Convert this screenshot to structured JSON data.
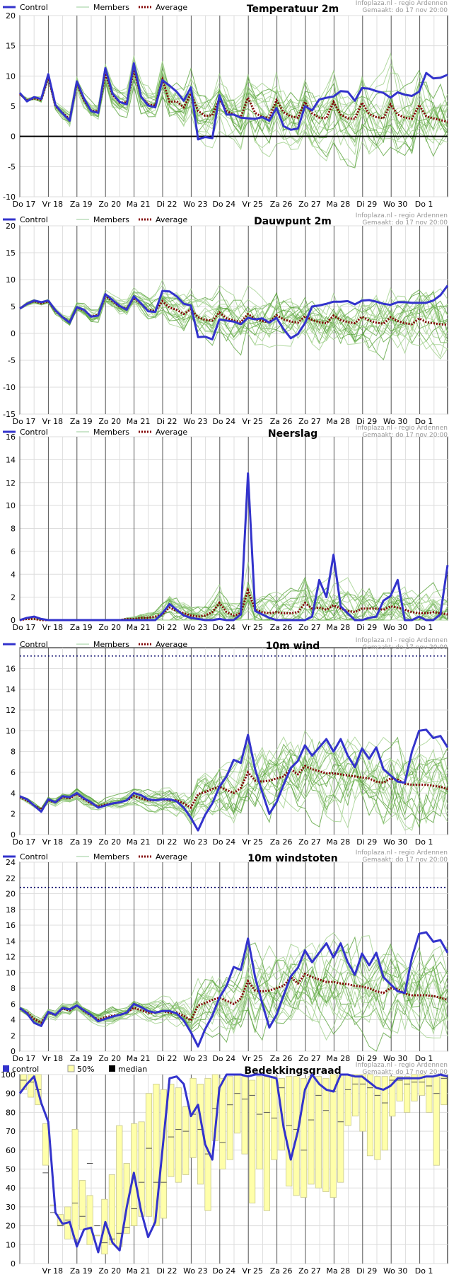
{
  "days": [
    "Do 17",
    "Vr 18",
    "Za 19",
    "Zo 20",
    "Ma 21",
    "Di 22",
    "Wo 23",
    "Do 24",
    "Vr 25",
    "Za 26",
    "Zo 27",
    "Ma 28",
    "Di 29",
    "Wo 30",
    "Do 1"
  ],
  "colors": {
    "control": "#3333cc",
    "members": "#55aa33",
    "average": "#800000",
    "bar": "#ffffaa",
    "bar_stroke": "#c8c890",
    "grid": "#dddddd",
    "daygrid": "#555555"
  },
  "chart_data": [
    {
      "id": "temp",
      "type": "line",
      "title": "Temperatuur 2m",
      "legend": [
        "Control",
        "Members",
        "Average"
      ],
      "credit": "Infoplaza.nl - regio Ardennen",
      "made": "Gemaakt: do 17 nov 20:00",
      "ylim": [
        -10,
        20
      ],
      "yticks": [
        -10,
        -5,
        0,
        5,
        10,
        15,
        20
      ],
      "control": [
        7.2,
        5.8,
        6.5,
        6.2,
        10.3,
        5.2,
        3.8,
        2.6,
        9.1,
        6.3,
        4.2,
        3.9,
        11.3,
        7.1,
        5.7,
        5.3,
        12.1,
        6.6,
        5.1,
        4.8,
        9.3,
        8.4,
        7.4,
        5.9,
        8.1,
        -0.5,
        -0.1,
        -0.3,
        6.8,
        3.6,
        3.6,
        3.1,
        3.0,
        2.9,
        3.2,
        2.6,
        4.7,
        1.7,
        1.1,
        1.3,
        5.0,
        4.3,
        6.1,
        6.4,
        6.6,
        7.5,
        7.4,
        5.9,
        8.0,
        7.9,
        7.5,
        7.2,
        6.4,
        7.3,
        6.9,
        6.7,
        7.4,
        10.5,
        9.6,
        9.7,
        10.2
      ],
      "average": [
        7.0,
        6.0,
        6.3,
        6.0,
        9.8,
        5.0,
        3.9,
        2.8,
        8.8,
        6.0,
        4.3,
        4.1,
        10.4,
        6.9,
        5.6,
        5.6,
        11.0,
        6.6,
        5.3,
        5.1,
        9.4,
        5.7,
        5.8,
        4.8,
        7.1,
        4.2,
        3.4,
        3.5,
        6.2,
        4.2,
        3.6,
        3.2,
        6.4,
        3.9,
        3.2,
        3.1,
        6.0,
        4.0,
        3.3,
        3.1,
        5.7,
        3.8,
        3.1,
        3.0,
        5.7,
        3.6,
        3.0,
        2.9,
        5.6,
        3.7,
        3.2,
        3.0,
        5.3,
        3.6,
        3.1,
        2.9,
        5.2,
        3.3,
        3.0,
        2.7,
        2.4
      ],
      "spread": [
        0.2,
        0.3,
        0.3,
        0.4,
        0.5,
        0.6,
        0.7,
        0.8,
        0.8,
        0.9,
        1.0,
        1.1,
        1.1,
        1.2,
        1.3,
        1.4,
        1.5,
        1.7,
        1.9,
        2.1,
        2.3,
        2.4,
        2.5,
        2.6,
        2.7,
        2.8,
        2.9,
        3.0,
        3.1,
        3.2,
        3.3,
        3.4,
        3.5,
        3.6,
        3.6,
        3.7,
        3.7,
        3.8,
        3.8,
        3.9,
        3.9,
        4.0,
        4.0,
        4.1,
        4.1,
        4.2,
        4.2,
        4.3,
        4.3,
        4.4,
        4.4,
        4.4,
        4.5,
        4.5,
        4.5,
        4.6,
        4.6,
        4.6,
        4.6,
        4.7,
        4.7
      ],
      "baseline": 0
    },
    {
      "id": "dew",
      "type": "line",
      "title": "Dauwpunt 2m",
      "legend": [
        "Control",
        "Members",
        "Average"
      ],
      "credit": "Infoplaza.nl - regio Ardennen",
      "made": "Gemaakt: do 17 nov 20:00",
      "ylim": [
        -15,
        20
      ],
      "yticks": [
        -15,
        -10,
        -5,
        0,
        5,
        10,
        15,
        20
      ],
      "control": [
        4.6,
        5.5,
        6.1,
        5.8,
        6.1,
        4.3,
        3.0,
        2.0,
        4.9,
        4.4,
        3.1,
        3.3,
        7.3,
        6.2,
        5.1,
        4.4,
        6.9,
        5.6,
        4.1,
        4.0,
        7.9,
        7.8,
        6.9,
        5.5,
        5.2,
        -0.7,
        -0.6,
        -1.1,
        2.6,
        2.4,
        2.2,
        1.7,
        2.9,
        2.6,
        2.8,
        2.0,
        2.9,
        0.8,
        -0.9,
        -0.1,
        1.9,
        5.0,
        5.2,
        5.5,
        5.9,
        5.9,
        6.0,
        5.4,
        6.1,
        6.2,
        5.9,
        5.5,
        5.3,
        5.8,
        5.8,
        5.7,
        5.7,
        5.7,
        6.1,
        7.1,
        8.9
      ],
      "average": [
        4.6,
        5.5,
        6.0,
        5.6,
        6.0,
        4.2,
        3.0,
        2.1,
        4.8,
        4.3,
        3.2,
        3.4,
        7.0,
        6.0,
        5.0,
        4.6,
        6.6,
        5.5,
        4.3,
        4.2,
        6.0,
        4.8,
        4.4,
        3.6,
        4.5,
        3.0,
        2.5,
        2.4,
        3.9,
        2.8,
        2.4,
        2.1,
        3.6,
        2.7,
        2.3,
        2.1,
        3.4,
        2.6,
        2.2,
        2.0,
        3.2,
        2.5,
        2.1,
        1.9,
        3.3,
        2.5,
        2.1,
        1.9,
        3.1,
        2.4,
        2.0,
        1.8,
        3.0,
        2.3,
        1.9,
        1.7,
        2.8,
        2.1,
        1.9,
        1.7,
        1.6
      ],
      "spread": [
        0.2,
        0.3,
        0.3,
        0.4,
        0.5,
        0.6,
        0.7,
        0.8,
        0.8,
        0.9,
        1.0,
        1.1,
        1.1,
        1.2,
        1.3,
        1.4,
        1.5,
        1.7,
        1.9,
        2.1,
        2.3,
        2.4,
        2.5,
        2.6,
        2.7,
        2.8,
        2.9,
        3.0,
        3.1,
        3.2,
        3.3,
        3.4,
        3.5,
        3.6,
        3.6,
        3.7,
        3.7,
        3.8,
        3.8,
        3.9,
        3.9,
        4.0,
        4.0,
        4.1,
        4.1,
        4.2,
        4.2,
        4.3,
        4.3,
        4.4,
        4.4,
        4.4,
        4.5,
        4.5,
        4.5,
        4.6,
        4.6,
        4.6,
        4.6,
        4.7,
        4.7
      ]
    },
    {
      "id": "rain",
      "type": "line",
      "title": "Neerslag",
      "legend": [
        "Control",
        "Members",
        "Average"
      ],
      "credit": "Infoplaza.nl - regio Ardennen",
      "made": "Gemaakt: do 17 nov 20:00",
      "ylim": [
        0,
        16
      ],
      "yticks": [
        0,
        2,
        4,
        6,
        8,
        10,
        12,
        14,
        16
      ],
      "control": [
        0,
        0.2,
        0.3,
        0.1,
        0,
        0,
        0,
        0,
        0,
        0,
        0,
        0,
        0,
        0,
        0,
        0,
        0,
        0,
        0,
        0,
        0.6,
        1.4,
        0.9,
        0.4,
        0.2,
        0.1,
        0,
        0,
        0.1,
        0,
        0,
        0.5,
        12.8,
        0.8,
        0.5,
        0.2,
        0,
        0,
        0,
        0,
        0,
        0.3,
        3.5,
        2.0,
        5.7,
        1.2,
        0.6,
        0,
        0,
        0.2,
        0.3,
        1.7,
        2.1,
        3.5,
        0,
        0,
        0.3,
        0,
        0,
        0.5,
        4.8
      ],
      "average": [
        0,
        0.1,
        0.1,
        0,
        0,
        0,
        0,
        0,
        0,
        0,
        0,
        0,
        0,
        0,
        0,
        0.1,
        0.1,
        0.2,
        0.2,
        0.3,
        0.5,
        1.1,
        0.8,
        0.6,
        0.4,
        0.3,
        0.4,
        0.7,
        1.5,
        0.7,
        0.4,
        0.6,
        2.6,
        0.9,
        0.7,
        0.6,
        0.7,
        0.6,
        0.6,
        0.7,
        1.5,
        1.0,
        1.1,
        0.9,
        1.3,
        1.0,
        0.8,
        0.7,
        1.0,
        1.0,
        1.0,
        0.9,
        1.2,
        1.1,
        0.9,
        0.7,
        0.6,
        0.6,
        0.7,
        0.6,
        0.5
      ],
      "spread": [
        0,
        0,
        0,
        0,
        0,
        0,
        0,
        0,
        0,
        0,
        0,
        0,
        0,
        0,
        0,
        0.1,
        0.2,
        0.3,
        0.4,
        0.6,
        0.8,
        1.0,
        1.0,
        0.9,
        0.8,
        0.8,
        0.9,
        1.1,
        1.4,
        1.2,
        1.0,
        1.2,
        2.0,
        1.6,
        1.4,
        1.3,
        1.3,
        1.4,
        1.5,
        1.6,
        2.0,
        1.8,
        1.8,
        1.7,
        1.9,
        1.8,
        1.7,
        1.6,
        1.7,
        1.7,
        1.7,
        1.6,
        1.7,
        1.7,
        1.6,
        1.5,
        1.5,
        1.4,
        1.4,
        1.3,
        1.3
      ],
      "clamp0": true
    },
    {
      "id": "wind",
      "type": "line",
      "title": "10m wind",
      "legend": [
        "Control",
        "Members",
        "Average"
      ],
      "credit": "Infoplaza.nl - regio Ardennen",
      "made": "Gemaakt: do 17 nov 20:00",
      "ylim": [
        0,
        18
      ],
      "yticks": [
        0,
        2,
        4,
        6,
        8,
        10,
        12,
        14,
        16
      ],
      "threshold": 17.2,
      "control": [
        3.7,
        3.4,
        2.8,
        2.2,
        3.4,
        3.1,
        3.7,
        3.6,
        4.0,
        3.5,
        3.1,
        2.6,
        2.8,
        3.0,
        3.1,
        3.3,
        4.0,
        3.8,
        3.4,
        3.3,
        3.4,
        3.4,
        3.2,
        2.6,
        1.6,
        0.4,
        1.9,
        3.0,
        4.6,
        5.6,
        7.2,
        6.9,
        9.6,
        6.3,
        4.1,
        2.0,
        3.1,
        4.8,
        6.4,
        7.1,
        8.6,
        7.6,
        8.4,
        9.2,
        8.0,
        9.2,
        7.6,
        6.5,
        8.3,
        7.3,
        8.4,
        6.3,
        5.7,
        5.1,
        5.0,
        8.0,
        10.0,
        10.1,
        9.3,
        9.5,
        8.4
      ],
      "average": [
        3.6,
        3.3,
        2.8,
        2.4,
        3.3,
        3.1,
        3.6,
        3.5,
        3.9,
        3.4,
        3.0,
        2.7,
        2.9,
        3.0,
        3.1,
        3.3,
        3.7,
        3.5,
        3.3,
        3.3,
        3.4,
        3.3,
        3.3,
        3.0,
        2.6,
        3.9,
        4.1,
        4.4,
        4.6,
        4.3,
        4.0,
        4.5,
        6.0,
        5.2,
        5.1,
        5.2,
        5.4,
        5.6,
        6.3,
        5.8,
        6.6,
        6.3,
        6.1,
        5.9,
        5.9,
        5.8,
        5.7,
        5.6,
        5.5,
        5.4,
        5.1,
        5.0,
        5.4,
        5.3,
        4.9,
        4.8,
        4.8,
        4.8,
        4.7,
        4.6,
        4.4
      ],
      "spread": [
        0.2,
        0.2,
        0.2,
        0.2,
        0.3,
        0.3,
        0.3,
        0.3,
        0.4,
        0.4,
        0.4,
        0.4,
        0.5,
        0.5,
        0.5,
        0.5,
        0.6,
        0.6,
        0.7,
        0.8,
        0.9,
        1.0,
        1.1,
        1.2,
        1.4,
        1.6,
        1.8,
        2.0,
        2.1,
        2.2,
        2.3,
        2.4,
        2.5,
        2.6,
        2.6,
        2.7,
        2.7,
        2.8,
        2.8,
        2.9,
        2.9,
        3.0,
        3.0,
        3.0,
        3.0,
        3.1,
        3.1,
        3.1,
        3.1,
        3.1,
        3.1,
        3.2,
        3.2,
        3.2,
        3.2,
        3.2,
        3.2,
        3.2,
        3.2,
        3.2,
        3.2
      ],
      "clamp0": true
    },
    {
      "id": "gust",
      "type": "line",
      "title": "10m windstoten",
      "legend": [
        "Control",
        "Members",
        "Average"
      ],
      "credit": "Infoplaza.nl - regio Ardennen",
      "made": "Gemaakt: do 17 nov 20:00",
      "ylim": [
        0,
        24
      ],
      "yticks": [
        0,
        2,
        4,
        6,
        8,
        10,
        12,
        14,
        16,
        18,
        20,
        22,
        24
      ],
      "threshold": 20.8,
      "control": [
        5.5,
        4.8,
        3.6,
        3.2,
        5.0,
        4.6,
        5.5,
        5.3,
        5.8,
        5.2,
        4.6,
        3.8,
        4.1,
        4.4,
        4.6,
        4.9,
        6.0,
        5.6,
        5.1,
        4.9,
        5.1,
        5.1,
        4.8,
        3.9,
        2.4,
        0.6,
        2.8,
        4.5,
        6.8,
        8.3,
        10.7,
        10.3,
        14.3,
        9.4,
        6.1,
        3.0,
        4.6,
        7.1,
        9.5,
        10.6,
        12.8,
        11.3,
        12.5,
        13.7,
        11.9,
        13.7,
        11.3,
        9.7,
        12.4,
        10.9,
        12.5,
        9.4,
        8.5,
        7.6,
        7.4,
        11.9,
        14.9,
        15.1,
        13.9,
        14.1,
        12.5
      ],
      "average": [
        5.4,
        4.9,
        4.1,
        3.6,
        4.9,
        4.6,
        5.4,
        5.2,
        5.8,
        5.1,
        4.5,
        4.0,
        4.3,
        4.5,
        4.6,
        4.9,
        5.5,
        5.2,
        4.9,
        4.9,
        5.1,
        4.9,
        4.9,
        4.5,
        3.9,
        5.8,
        6.1,
        6.5,
        6.8,
        6.4,
        6.0,
        6.7,
        8.9,
        7.7,
        7.6,
        7.7,
        8.0,
        8.3,
        9.4,
        8.6,
        9.8,
        9.4,
        9.1,
        8.8,
        8.8,
        8.6,
        8.5,
        8.3,
        8.2,
        8.0,
        7.6,
        7.4,
        8.0,
        7.9,
        7.3,
        7.1,
        7.1,
        7.1,
        7.0,
        6.8,
        6.5
      ],
      "spread": [
        0.3,
        0.3,
        0.3,
        0.3,
        0.4,
        0.4,
        0.4,
        0.4,
        0.5,
        0.5,
        0.5,
        0.5,
        0.7,
        0.7,
        0.7,
        0.7,
        0.8,
        0.8,
        1.0,
        1.1,
        1.3,
        1.4,
        1.6,
        1.7,
        2.0,
        2.3,
        2.6,
        2.9,
        3.0,
        3.2,
        3.3,
        3.5,
        3.6,
        3.7,
        3.7,
        3.9,
        3.9,
        4.0,
        4.0,
        4.2,
        4.2,
        4.3,
        4.3,
        4.3,
        4.3,
        4.5,
        4.5,
        4.5,
        4.5,
        4.5,
        4.5,
        4.6,
        4.6,
        4.6,
        4.6,
        4.6,
        4.6,
        4.6,
        4.6,
        4.6,
        4.6
      ],
      "clamp0": true
    },
    {
      "id": "cloud",
      "type": "bar",
      "title": "Bedekkingsgraad",
      "legend": [
        "control",
        "50%",
        "median"
      ],
      "credit": "Infoplaza.nl - regio Ardennen",
      "made": "Gemaakt: do 17 nov 20:00",
      "ylim": [
        0,
        100
      ],
      "yticks": [
        0,
        10,
        20,
        30,
        40,
        50,
        60,
        70,
        80,
        90,
        100
      ],
      "control": [
        90,
        95,
        99,
        85,
        75,
        27,
        21,
        22,
        9,
        18,
        19,
        6,
        22,
        11,
        7,
        30,
        48,
        28,
        14,
        22,
        60,
        98,
        99,
        95,
        78,
        84,
        63,
        55,
        93,
        100,
        100,
        100,
        99,
        100,
        100,
        99,
        98,
        72,
        55,
        70,
        92,
        100,
        95,
        92,
        91,
        100,
        100,
        99,
        99,
        96,
        93,
        92,
        94,
        98,
        98,
        98,
        98,
        99,
        99,
        100,
        99
      ],
      "bar_low": [
        92,
        88,
        84,
        52,
        33,
        20,
        13,
        13,
        18,
        10,
        20,
        5,
        10,
        9,
        16,
        20,
        25,
        25,
        20,
        24,
        46,
        43,
        47,
        56,
        42,
        28,
        65,
        50,
        55,
        69,
        58,
        32,
        50,
        28,
        55,
        60,
        41,
        36,
        35,
        42,
        40,
        38,
        35,
        43,
        73,
        78,
        70,
        57,
        55,
        60,
        78,
        86,
        80,
        86,
        89,
        80,
        52,
        84
      ],
      "bar_high": [
        100,
        100,
        100,
        74,
        31,
        26,
        30,
        71,
        44,
        36,
        15,
        34,
        47,
        73,
        53,
        74,
        75,
        90,
        95,
        92,
        95,
        93,
        83,
        98,
        95,
        98,
        100,
        98,
        99,
        100,
        99,
        97,
        99,
        99,
        99,
        98,
        99,
        99,
        98,
        99,
        99,
        98,
        100,
        100,
        100,
        100,
        100,
        100,
        99,
        99,
        99,
        99,
        99,
        100,
        100,
        99,
        99,
        99
      ],
      "bar_median": [
        97,
        96,
        92,
        48,
        27,
        20,
        23,
        32,
        25,
        53,
        20,
        11,
        13,
        16,
        19,
        29,
        43,
        61,
        43,
        43,
        67,
        71,
        70,
        79,
        71,
        58,
        82,
        64,
        84,
        90,
        87,
        89,
        79,
        80,
        77,
        93,
        73,
        71,
        60,
        76,
        89,
        81,
        91,
        75,
        92,
        95,
        95,
        93,
        89,
        85,
        97,
        97,
        95,
        96,
        96,
        94,
        90,
        98
      ]
    }
  ]
}
